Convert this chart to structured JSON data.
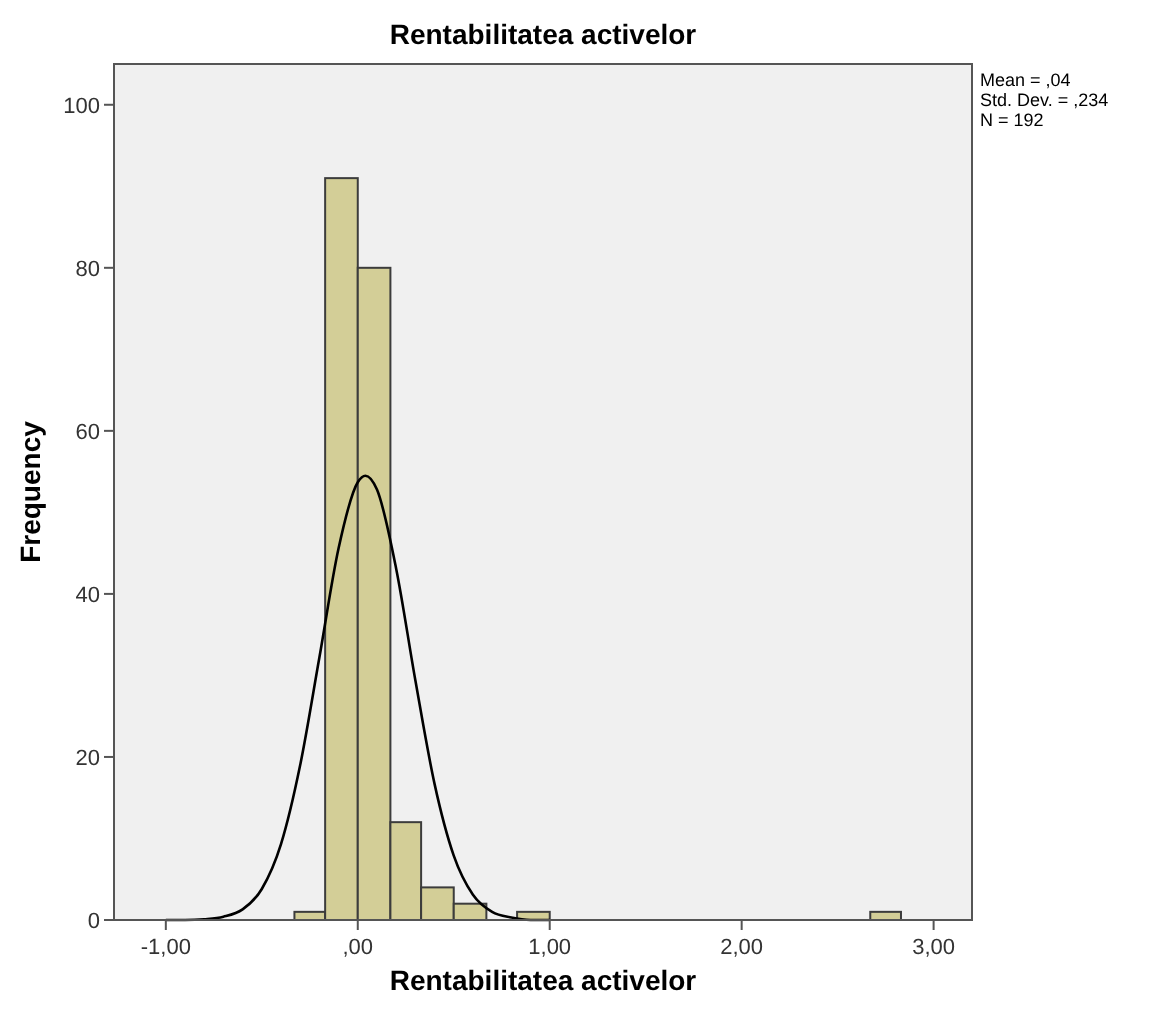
{
  "chart_data": {
    "type": "histogram",
    "title": "Rentabilitatea activelor",
    "xlabel": "Rentabilitatea activelor",
    "ylabel": "Frequency",
    "series": [
      {
        "color": "#d3ce97",
        "bins": [
          -0.33,
          -0.17,
          0,
          0.17,
          0.33,
          0.5,
          0.67
        ],
        "values": [
          1,
          91,
          80,
          12,
          4,
          2
        ]
      },
      {
        "color": "#d3ce97",
        "bins": [
          0.83,
          1
        ],
        "values": [
          1
        ]
      },
      {
        "color": "#d3ce97",
        "bins": [
          2.67,
          2.83
        ],
        "values": [
          1
        ]
      },
      {
        "type": "line",
        "color": "#000000",
        "x": [
          -1,
          -0.9,
          -0.8,
          -0.7,
          -0.6,
          -0.5,
          -0.4,
          -0.3,
          -0.2,
          -0.1,
          0,
          0.04,
          0.1,
          0.2,
          0.3,
          0.4,
          0.5,
          0.6,
          0.7,
          0.8,
          0.9,
          1
        ],
        "values": [
          0,
          0,
          0.1,
          0.4,
          1.3,
          3.8,
          9.3,
          19,
          32.2,
          45.6,
          53.7,
          54.5,
          52.8,
          43.1,
          29.4,
          16.7,
          7.9,
          3.1,
          1,
          0.3,
          0,
          0
        ]
      }
    ],
    "xlim": [
      -1.27,
      3.2
    ],
    "ylim": [
      0,
      105
    ],
    "xticks": [
      {
        "value": -1,
        "label": "-1,00"
      },
      {
        "value": 0,
        "label": ",00"
      },
      {
        "value": 1,
        "label": "1,00"
      },
      {
        "value": 2,
        "label": "2,00"
      },
      {
        "value": 3,
        "label": "3,00"
      }
    ],
    "yticks": [
      0,
      20,
      40,
      60,
      80,
      100
    ],
    "annotations": [
      "Mean = ,04",
      "Std. Dev. = ,234",
      "N = 192"
    ]
  }
}
